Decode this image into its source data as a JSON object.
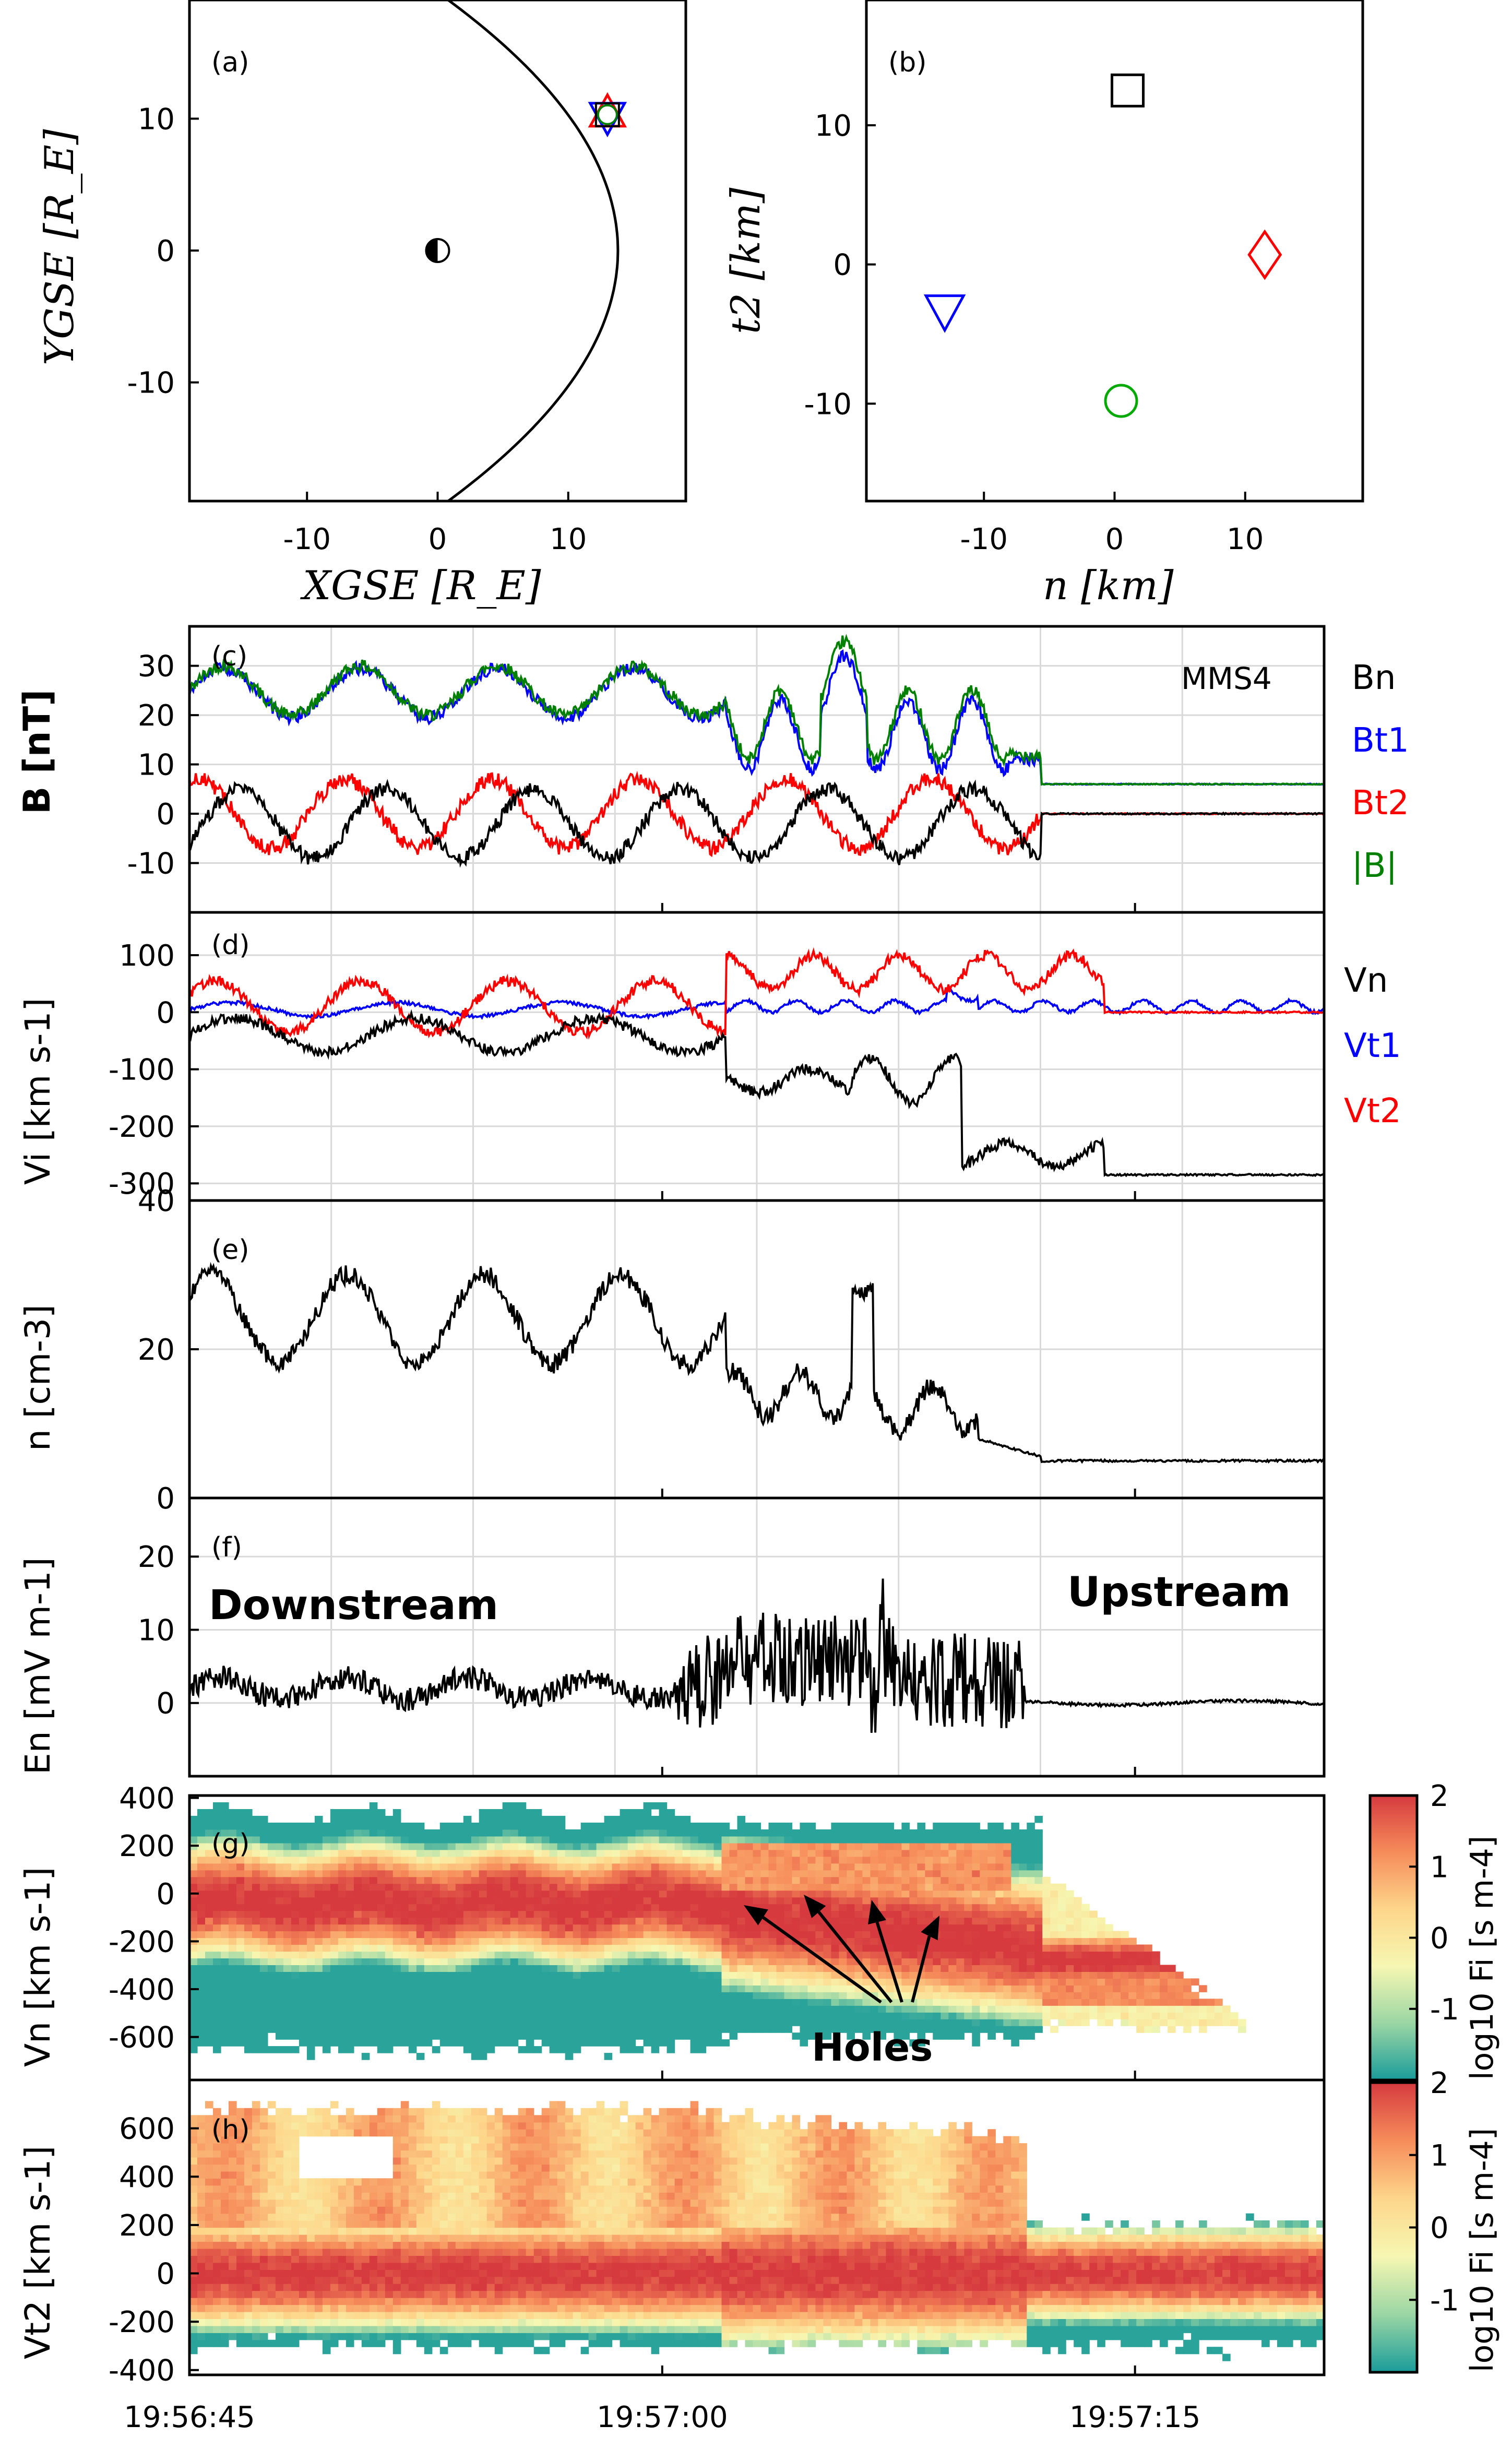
{
  "chart_data": [
    {
      "id": "a",
      "type": "scatter",
      "panel_label": "(a)",
      "xlabel": "XGSE [R_E]",
      "ylabel": "YGSE [R_E]",
      "xlim": [
        -19,
        19
      ],
      "ylim": [
        -19,
        19
      ],
      "xticks": [
        -10,
        0,
        10
      ],
      "yticks": [
        -10,
        0,
        10
      ],
      "xtick_labels": [
        "-10",
        "0",
        "10"
      ],
      "ytick_labels": [
        "-10",
        "0",
        "10"
      ],
      "earth": {
        "x": 0,
        "y": 0
      },
      "bow_shock": {
        "nose_x": 13.8,
        "flaring": 0.036
      },
      "spacecraft": {
        "x": 13,
        "y": 10.3,
        "markers": [
          "triangle-up",
          "triangle-down",
          "square",
          "circle"
        ]
      }
    },
    {
      "id": "b",
      "type": "scatter",
      "panel_label": "(b)",
      "xlabel": "n [km]",
      "ylabel": "t2 [km]",
      "xlim": [
        -19,
        19
      ],
      "ylim": [
        -17,
        19
      ],
      "xticks": [
        -10,
        0,
        10
      ],
      "yticks": [
        -10,
        0,
        10
      ],
      "xtick_labels": [
        "-10",
        "0",
        "10"
      ],
      "ytick_labels": [
        "-10",
        "0",
        "10"
      ],
      "points": [
        {
          "marker": "square",
          "color": "#000000",
          "x": 1,
          "y": 12.5
        },
        {
          "marker": "diamond",
          "color": "#ff0000",
          "x": 11.5,
          "y": 0.7
        },
        {
          "marker": "triangle-down",
          "color": "#0000ff",
          "x": -13,
          "y": -3.3
        },
        {
          "marker": "circle",
          "color": "#00aa00",
          "x": 0.5,
          "y": -9.8
        }
      ]
    },
    {
      "id": "c",
      "type": "line",
      "panel_label": "(c)",
      "ylabel": "B [nT]",
      "ylim": [
        -20,
        38
      ],
      "yticks": [
        -10,
        0,
        10,
        20,
        30
      ],
      "ytick_labels": [
        "-10",
        "0",
        "10",
        "20",
        "30"
      ],
      "annotation": "MMS4",
      "legend": [
        {
          "label": "Bn",
          "color": "#000000"
        },
        {
          "label": "Bt1",
          "color": "#0000ff"
        },
        {
          "label": "Bt2",
          "color": "#ff0000"
        },
        {
          "label": "|B|",
          "color": "#008000"
        }
      ]
    },
    {
      "id": "d",
      "type": "line",
      "panel_label": "(d)",
      "ylabel": "Vi [km s-1]",
      "ylim": [
        -330,
        175
      ],
      "yticks": [
        -300,
        -200,
        -100,
        0,
        100
      ],
      "ytick_labels": [
        "-300",
        "-200",
        "-100",
        "0",
        "100"
      ],
      "legend": [
        {
          "label": "Vn",
          "color": "#000000"
        },
        {
          "label": "Vt1",
          "color": "#0000ff"
        },
        {
          "label": "Vt2",
          "color": "#ff0000"
        }
      ]
    },
    {
      "id": "e",
      "type": "line",
      "panel_label": "(e)",
      "ylabel": "n [cm-3]",
      "ylim": [
        0,
        40
      ],
      "yticks": [
        0,
        20,
        40
      ],
      "ytick_labels": [
        "0",
        "20",
        "40"
      ]
    },
    {
      "id": "f",
      "type": "line",
      "panel_label": "(f)",
      "ylabel": "En [mV m-1]",
      "ylim": [
        -10,
        28
      ],
      "yticks": [
        0,
        10,
        20
      ],
      "ytick_labels": [
        "0",
        "10",
        "20"
      ],
      "annotations": [
        "Downstream",
        "Upstream"
      ]
    },
    {
      "id": "g",
      "type": "heatmap",
      "panel_label": "(g)",
      "ylabel": "Vn [km s-1]",
      "ylim": [
        -780,
        410
      ],
      "yticks": [
        -600,
        -400,
        -200,
        0,
        200,
        400
      ],
      "ytick_labels": [
        "-600",
        "-400",
        "-200",
        "0",
        "200",
        "400"
      ],
      "annotation": "Holes",
      "colorbar": {
        "label": "log10 Fi [s m-4]",
        "range": [
          -2,
          2
        ],
        "ticks": [
          "-1",
          "0",
          "1",
          "2"
        ]
      }
    },
    {
      "id": "h",
      "type": "heatmap",
      "panel_label": "(h)",
      "ylabel": "Vt2 [km s-1]",
      "ylim": [
        -420,
        800
      ],
      "yticks": [
        -400,
        -200,
        0,
        200,
        400,
        600
      ],
      "ytick_labels": [
        "-400",
        "-200",
        "0",
        "200",
        "400",
        "600"
      ],
      "colorbar": {
        "label": "log10 Fi [s m-4]",
        "range": [
          -2,
          2
        ],
        "ticks": [
          "-1",
          "0",
          "1",
          "2"
        ]
      }
    }
  ],
  "time_axis": {
    "range_seconds": [
      0,
      36
    ],
    "tick_seconds": [
      0,
      15,
      30
    ],
    "tick_labels": [
      "19:56:45",
      "19:57:00",
      "19:57:15"
    ],
    "grid_seconds": [
      0,
      4.5,
      9,
      13.5,
      18,
      22.5,
      27,
      31.5
    ]
  },
  "colors": {
    "red": "#ff0000",
    "blue": "#0000ff",
    "green": "#008000",
    "black": "#000000"
  }
}
